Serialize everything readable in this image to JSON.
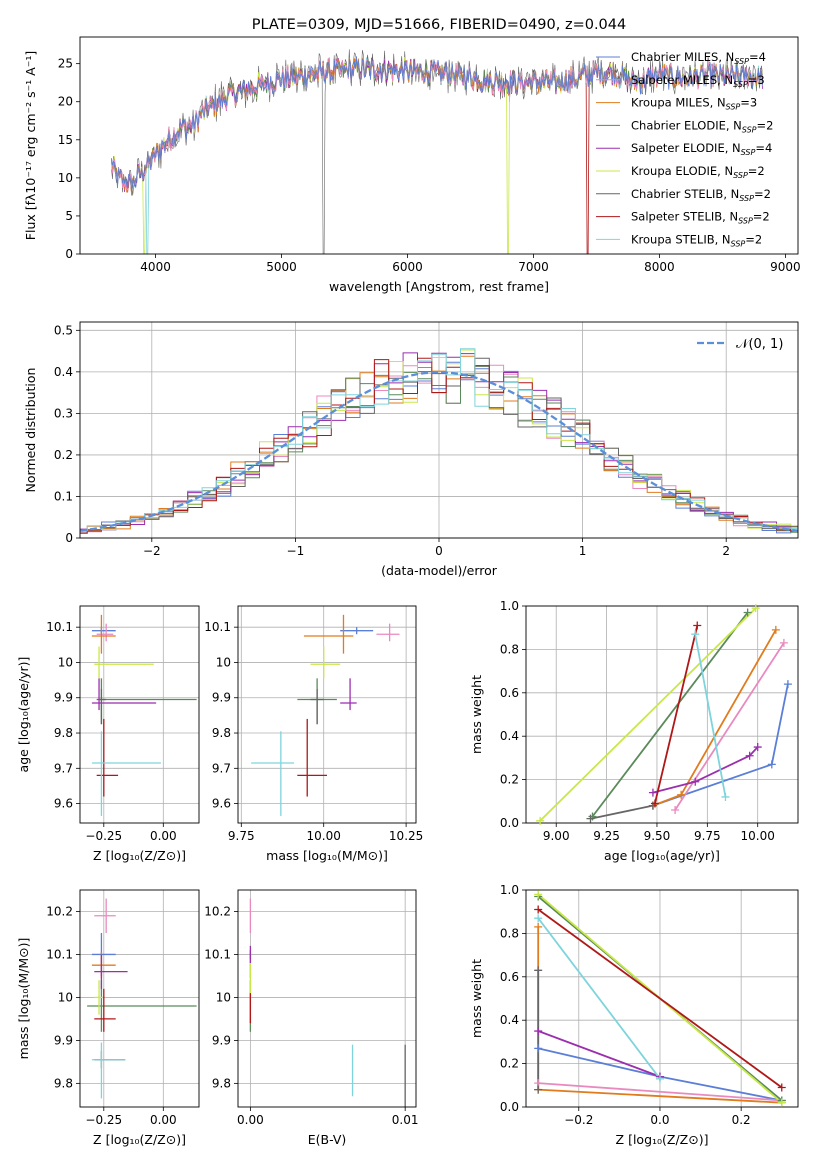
{
  "figure_title": "PLATE=0309, MJD=51666, FIBERID=0490, z=0.044",
  "colors": {
    "Chabrier MILES": "#5b7fd6",
    "Salpeter MILES": "#e88ac0",
    "Kroupa MILES": "#e07c1e",
    "Chabrier ELODIE": "#5a8a5a",
    "Salpeter ELODIE": "#9b2fae",
    "Kroupa ELODIE": "#c8e84a",
    "Chabrier STELIB": "#666666",
    "Salpeter STELIB": "#b01818",
    "Kroupa STELIB": "#7fd4dc"
  },
  "chart_data": [
    {
      "id": "spectrum",
      "type": "line",
      "title": "PLATE=0309, MJD=51666, FIBERID=0490, z=0.044",
      "xlabel": "wavelength [Angstrom, rest frame]",
      "ylabel": "Flux [fλ10⁻¹⁷ erg cm⁻² s⁻¹ A⁻¹]",
      "xlim": [
        3400,
        9100
      ],
      "ylim": [
        0,
        28.5
      ],
      "xticks": [
        4000,
        5000,
        6000,
        7000,
        8000,
        9000
      ],
      "yticks": [
        0,
        5,
        10,
        15,
        20,
        25
      ],
      "legend_position": "top-right",
      "legend": [
        "Chabrier MILES, N_SSP=4",
        "Salpeter MILES, N_SSP=3",
        "Kroupa MILES, N_SSP=3",
        "Chabrier ELODIE, N_SSP=2",
        "Salpeter ELODIE, N_SSP=4",
        "Kroupa ELODIE, N_SSP=2",
        "Chabrier STELIB, N_SSP=2",
        "Salpeter STELIB, N_SSP=2",
        "Kroupa STELIB, N_SSP=2"
      ],
      "continuum": {
        "x": [
          3650,
          3700,
          3800,
          3900,
          4000,
          4100,
          4200,
          4300,
          4400,
          4500,
          4600,
          4700,
          4800,
          4900,
          5000,
          5200,
          5400,
          5600,
          5800,
          6000,
          6200,
          6400,
          6600,
          6800,
          7000,
          7200,
          7400,
          7600,
          7800,
          8000,
          8200,
          8400,
          8600,
          8800
        ],
        "y": [
          12,
          10,
          9,
          11,
          13,
          15,
          16.5,
          17,
          19,
          20,
          21,
          21.5,
          22,
          22.5,
          23,
          23.5,
          24,
          24.3,
          24.2,
          24,
          23.8,
          23.5,
          22.8,
          22.5,
          22.6,
          22.5,
          23.5,
          24,
          22.5,
          23.5,
          23,
          23.5,
          23.2,
          23.3
        ]
      },
      "dropouts": [
        {
          "series": "Kroupa ELODIE",
          "x": 3910
        },
        {
          "series": "Kroupa STELIB",
          "x": 3935
        },
        {
          "series": "Chabrier STELIB",
          "x": 5335
        },
        {
          "series": "Kroupa ELODIE",
          "x": 6800
        },
        {
          "series": "Salpeter STELIB",
          "x": 7430
        }
      ]
    },
    {
      "id": "residuals",
      "type": "line",
      "xlabel": "(data-model)/error",
      "ylabel": "Normed distribution",
      "xlim": [
        -2.5,
        2.5
      ],
      "ylim": [
        0,
        0.52
      ],
      "xticks": [
        -2,
        -1,
        0,
        1,
        2
      ],
      "xtick_labels": [
        "−2",
        "−1",
        "0",
        "1",
        "2"
      ],
      "yticks": [
        0,
        0.1,
        0.2,
        0.3,
        0.4,
        0.5
      ],
      "grid": true,
      "legend_position": "top-right",
      "gaussian_label": "𝒩(0, 1)",
      "gaussian": {
        "mean": 0,
        "sigma": 1
      }
    },
    {
      "id": "age_vs_Z",
      "type": "scatter",
      "xlabel": "Z [log₁₀(Z/Z⊙)]",
      "ylabel": "age  [log₁₀(age/yr)]",
      "xlim": [
        -0.35,
        0.15
      ],
      "ylim": [
        9.545,
        10.16
      ],
      "xticks": [
        -0.25,
        0.0
      ],
      "xtick_labels": [
        "−0.25",
        "0.00"
      ],
      "yticks": [
        9.6,
        9.7,
        9.8,
        9.9,
        10.0,
        10.1
      ],
      "grid": true,
      "points": [
        {
          "series": "Chabrier MILES",
          "x": -0.26,
          "y": 10.09,
          "xerr": [
            0.04,
            0.06
          ],
          "yerr": [
            0.01,
            0.01
          ]
        },
        {
          "series": "Salpeter MILES",
          "x": -0.24,
          "y": 10.08,
          "xerr": [
            0.04,
            0.03
          ],
          "yerr": [
            0.02,
            0.03
          ]
        },
        {
          "series": "Kroupa MILES",
          "x": -0.26,
          "y": 10.075,
          "xerr": [
            0.04,
            0.06
          ],
          "yerr": [
            0.05,
            0.06
          ]
        },
        {
          "series": "Chabrier ELODIE",
          "x": -0.26,
          "y": 9.895,
          "xerr": [
            0.01,
            0.4
          ],
          "yerr": [
            0.07,
            0.06
          ]
        },
        {
          "series": "Salpeter ELODIE",
          "x": -0.27,
          "y": 9.885,
          "xerr": [
            0.03,
            0.24
          ],
          "yerr": [
            0.02,
            0.07
          ]
        },
        {
          "series": "Kroupa ELODIE",
          "x": -0.27,
          "y": 9.995,
          "xerr": [
            0.02,
            0.23
          ],
          "yerr": [
            0.04,
            0.05
          ]
        },
        {
          "series": "Chabrier STELIB",
          "x": -0.26,
          "y": 9.895,
          "xerr": [
            0.02,
            0.02
          ],
          "yerr": [
            0.07,
            0.03
          ]
        },
        {
          "series": "Salpeter STELIB",
          "x": -0.25,
          "y": 9.68,
          "xerr": [
            0.03,
            0.06
          ],
          "yerr": [
            0.06,
            0.16
          ]
        },
        {
          "series": "Kroupa STELIB",
          "x": -0.26,
          "y": 9.715,
          "xerr": [
            0.04,
            0.25
          ],
          "yerr": [
            0.15,
            0.09
          ]
        }
      ]
    },
    {
      "id": "age_vs_mass",
      "type": "scatter",
      "xlabel": "mass [log₁₀(M/M⊙)]",
      "ylabel": "",
      "xlim": [
        9.74,
        10.28
      ],
      "ylim": [
        9.545,
        10.16
      ],
      "xticks": [
        9.75,
        10.0,
        10.25
      ],
      "xtick_labels": [
        "9.75",
        "10.00",
        "10.25"
      ],
      "yticks": [
        9.6,
        9.7,
        9.8,
        9.9,
        10.0,
        10.1
      ],
      "grid": true,
      "points": [
        {
          "series": "Chabrier MILES",
          "x": 10.1,
          "y": 10.09,
          "xerr": [
            0.05,
            0.05
          ],
          "yerr": [
            0.01,
            0.01
          ]
        },
        {
          "series": "Salpeter MILES",
          "x": 10.2,
          "y": 10.08,
          "xerr": [
            0.04,
            0.03
          ],
          "yerr": [
            0.02,
            0.03
          ]
        },
        {
          "series": "Kroupa MILES",
          "x": 10.06,
          "y": 10.075,
          "xerr": [
            0.12,
            0.03
          ],
          "yerr": [
            0.05,
            0.06
          ]
        },
        {
          "series": "Chabrier ELODIE",
          "x": 9.98,
          "y": 9.895,
          "xerr": [
            0.06,
            0.06
          ],
          "yerr": [
            0.07,
            0.06
          ]
        },
        {
          "series": "Salpeter ELODIE",
          "x": 10.08,
          "y": 9.885,
          "xerr": [
            0.03,
            0.02
          ],
          "yerr": [
            0.02,
            0.07
          ]
        },
        {
          "series": "Kroupa ELODIE",
          "x": 10.0,
          "y": 9.995,
          "xerr": [
            0.04,
            0.05
          ],
          "yerr": [
            0.04,
            0.05
          ]
        },
        {
          "series": "Chabrier STELIB",
          "x": 9.98,
          "y": 9.895,
          "xerr": [
            0.02,
            0.02
          ],
          "yerr": [
            0.07,
            0.03
          ]
        },
        {
          "series": "Salpeter STELIB",
          "x": 9.95,
          "y": 9.68,
          "xerr": [
            0.03,
            0.06
          ],
          "yerr": [
            0.06,
            0.16
          ]
        },
        {
          "series": "Kroupa STELIB",
          "x": 9.87,
          "y": 9.715,
          "xerr": [
            0.09,
            0.04
          ],
          "yerr": [
            0.15,
            0.09
          ]
        }
      ]
    },
    {
      "id": "weight_vs_age",
      "type": "line",
      "xlabel": "age  [log₁₀(age/yr)]",
      "ylabel": "mass weight",
      "xlim": [
        8.85,
        10.2
      ],
      "ylim": [
        0,
        1.0
      ],
      "xticks": [
        9.0,
        9.25,
        9.5,
        9.75,
        10.0
      ],
      "xtick_labels": [
        "9.00",
        "9.25",
        "9.50",
        "9.75",
        "10.00"
      ],
      "yticks": [
        0,
        0.2,
        0.4,
        0.6,
        0.8,
        1.0
      ],
      "ytick_labels": [
        "0.0",
        "0.2",
        "0.4",
        "0.6",
        "0.8",
        "1.0"
      ],
      "grid": true,
      "series": [
        {
          "name": "Chabrier MILES",
          "x": [
            9.48,
            10.07,
            10.15
          ],
          "y": [
            0.08,
            0.27,
            0.64
          ]
        },
        {
          "name": "Salpeter MILES",
          "x": [
            9.59,
            10.13
          ],
          "y": [
            0.06,
            0.83
          ]
        },
        {
          "name": "Kroupa MILES",
          "x": [
            9.48,
            9.62,
            10.09
          ],
          "y": [
            0.08,
            0.13,
            0.89
          ]
        },
        {
          "name": "Chabrier ELODIE",
          "x": [
            9.18,
            9.95
          ],
          "y": [
            0.03,
            0.97
          ]
        },
        {
          "name": "Salpeter ELODIE",
          "x": [
            9.48,
            9.69,
            9.96,
            10.0
          ],
          "y": [
            0.14,
            0.19,
            0.31,
            0.35
          ]
        },
        {
          "name": "Kroupa ELODIE",
          "x": [
            8.92,
            9.99
          ],
          "y": [
            0.01,
            0.99
          ]
        },
        {
          "name": "Chabrier STELIB",
          "x": [
            9.17,
            9.48
          ],
          "y": [
            0.02,
            0.08
          ]
        },
        {
          "name": "Salpeter STELIB",
          "x": [
            9.49,
            9.7
          ],
          "y": [
            0.09,
            0.91
          ]
        },
        {
          "name": "Kroupa STELIB",
          "x": [
            9.69,
            9.84
          ],
          "y": [
            0.87,
            0.12
          ]
        }
      ]
    },
    {
      "id": "mass_vs_Z",
      "type": "scatter",
      "xlabel": "Z [log₁₀(Z/Z⊙)]",
      "ylabel": "mass [log₁₀(M/M⊙)]",
      "xlim": [
        -0.35,
        0.15
      ],
      "ylim": [
        9.745,
        10.25
      ],
      "xticks": [
        -0.25,
        0.0
      ],
      "xtick_labels": [
        "−0.25",
        "0.00"
      ],
      "yticks": [
        9.8,
        9.9,
        10.0,
        10.1,
        10.2
      ],
      "grid": true,
      "points": [
        {
          "series": "Chabrier MILES",
          "x": -0.26,
          "y": 10.1,
          "xerr": [
            0.04,
            0.06
          ],
          "yerr": [
            0.05,
            0.05
          ]
        },
        {
          "series": "Salpeter MILES",
          "x": -0.24,
          "y": 10.19,
          "xerr": [
            0.05,
            0.04
          ],
          "yerr": [
            0.04,
            0.04
          ]
        },
        {
          "series": "Kroupa MILES",
          "x": -0.26,
          "y": 10.075,
          "xerr": [
            0.04,
            0.06
          ],
          "yerr": [
            0.03,
            0.03
          ]
        },
        {
          "series": "Chabrier ELODIE",
          "x": -0.26,
          "y": 9.98,
          "xerr": [
            0.06,
            0.4
          ],
          "yerr": [
            0.06,
            0.06
          ]
        },
        {
          "series": "Salpeter ELODIE",
          "x": -0.26,
          "y": 10.06,
          "xerr": [
            0.03,
            0.11
          ],
          "yerr": [
            0.04,
            0.04
          ]
        },
        {
          "series": "Kroupa ELODIE",
          "x": -0.27,
          "y": 10.0,
          "xerr": [
            0.02,
            0.02
          ],
          "yerr": [
            0.04,
            0.04
          ]
        },
        {
          "series": "Chabrier STELIB",
          "x": -0.26,
          "y": 9.855,
          "xerr": [
            0.03,
            0.1
          ],
          "yerr": [
            0.02,
            0.02
          ]
        },
        {
          "series": "Salpeter STELIB",
          "x": -0.25,
          "y": 9.95,
          "xerr": [
            0.04,
            0.05
          ],
          "yerr": [
            0.03,
            0.07
          ]
        },
        {
          "series": "Kroupa STELIB",
          "x": -0.26,
          "y": 9.855,
          "xerr": [
            0.04,
            0.1
          ],
          "yerr": [
            0.09,
            0.04
          ]
        }
      ]
    },
    {
      "id": "mass_vs_EBV",
      "type": "scatter",
      "xlabel": "E(B-V)",
      "ylabel": "",
      "xlim": [
        -0.0008,
        0.0107
      ],
      "ylim": [
        9.745,
        10.25
      ],
      "xticks": [
        0.0,
        0.01
      ],
      "xtick_labels": [
        "0.00",
        "0.01"
      ],
      "yticks": [
        9.8,
        9.9,
        10.0,
        10.1,
        10.2
      ],
      "grid": true,
      "points": [
        {
          "series": "Chabrier MILES",
          "x": 0.0,
          "y": 10.1,
          "xerr": [
            0,
            0
          ],
          "yerr": [
            0.01,
            0.01
          ]
        },
        {
          "series": "Salpeter MILES",
          "x": 0.0,
          "y": 10.19,
          "xerr": [
            0,
            0
          ],
          "yerr": [
            0.04,
            0.04
          ]
        },
        {
          "series": "Kroupa MILES",
          "x": 0.0,
          "y": 10.075,
          "xerr": [
            0,
            0
          ],
          "yerr": [
            0.03,
            0.03
          ]
        },
        {
          "series": "Chabrier ELODIE",
          "x": 0.0,
          "y": 9.98,
          "xerr": [
            0,
            0
          ],
          "yerr": [
            0.06,
            0.06
          ]
        },
        {
          "series": "Salpeter ELODIE",
          "x": 0.0,
          "y": 10.1,
          "xerr": [
            0,
            0
          ],
          "yerr": [
            0.02,
            0.02
          ]
        },
        {
          "series": "Kroupa ELODIE",
          "x": 0.0,
          "y": 10.04,
          "xerr": [
            0,
            0
          ],
          "yerr": [
            0.04,
            0.04
          ]
        },
        {
          "series": "Chabrier STELIB",
          "x": 0.01,
          "y": 9.79,
          "xerr": [
            0,
            0
          ],
          "yerr": [
            0.06,
            0.1
          ]
        },
        {
          "series": "Salpeter STELIB",
          "x": 0.0,
          "y": 9.97,
          "xerr": [
            0,
            0
          ],
          "yerr": [
            0.03,
            0.04
          ]
        },
        {
          "series": "Kroupa STELIB",
          "x": 0.0066,
          "y": 9.83,
          "xerr": [
            0,
            0
          ],
          "yerr": [
            0.06,
            0.06
          ]
        }
      ]
    },
    {
      "id": "weight_vs_Z",
      "type": "line",
      "xlabel": "Z [log₁₀(Z/Z⊙)]",
      "ylabel": "mass weight",
      "xlim": [
        -0.33,
        0.34
      ],
      "ylim": [
        0,
        1.0
      ],
      "xticks": [
        -0.2,
        0.0,
        0.2
      ],
      "xtick_labels": [
        "−0.2",
        "0.0",
        "0.2"
      ],
      "yticks": [
        0,
        0.2,
        0.4,
        0.6,
        0.8,
        1.0
      ],
      "ytick_labels": [
        "0.0",
        "0.2",
        "0.4",
        "0.6",
        "0.8",
        "1.0"
      ],
      "grid": true,
      "series": [
        {
          "name": "Chabrier MILES",
          "x": [
            -0.3,
            0.0,
            0.3
          ],
          "y": [
            0.27,
            0.14,
            0.03
          ]
        },
        {
          "name": "Salpeter MILES",
          "x": [
            -0.3,
            0.3
          ],
          "y": [
            0.11,
            0.03
          ]
        },
        {
          "name": "Kroupa MILES",
          "x": [
            -0.3,
            -0.3,
            0.3
          ],
          "y": [
            0.83,
            0.08,
            0.02
          ]
        },
        {
          "name": "Chabrier ELODIE",
          "x": [
            -0.3,
            0.3
          ],
          "y": [
            0.97,
            0.03
          ]
        },
        {
          "name": "Salpeter ELODIE",
          "x": [
            -0.3,
            0.0
          ],
          "y": [
            0.35,
            0.14
          ]
        },
        {
          "name": "Kroupa ELODIE",
          "x": [
            -0.3,
            0.3
          ],
          "y": [
            0.98,
            0.02
          ]
        },
        {
          "name": "Chabrier STELIB",
          "x": [
            -0.3,
            -0.3
          ],
          "y": [
            0.08,
            0.63
          ]
        },
        {
          "name": "Salpeter STELIB",
          "x": [
            -0.3,
            0.3
          ],
          "y": [
            0.91,
            0.09
          ]
        },
        {
          "name": "Kroupa STELIB",
          "x": [
            -0.3,
            0.0
          ],
          "y": [
            0.87,
            0.13
          ]
        }
      ]
    }
  ]
}
